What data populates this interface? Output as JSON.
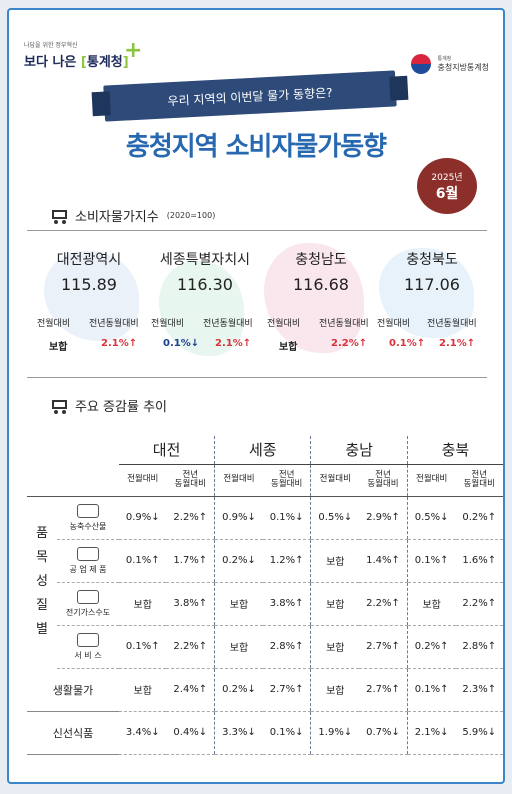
{
  "header": {
    "logo_tagline": "나답을 위한 정부혁신",
    "logo_text_left": "보다 나은",
    "logo_text_right": "통계청",
    "agency_small": "통계청",
    "agency_name": "충청지방통계청",
    "banner": "우리 지역의 이번달 물가 동향은?",
    "title": "충청지역 소비자물가동향",
    "date_year": "2025년",
    "date_month": "6월"
  },
  "index_section": {
    "heading": "소비자물가지수",
    "base_note": "(2020=100)",
    "col_labels": [
      "전월대비",
      "전년동월대비"
    ],
    "regions": [
      {
        "name": "대전광역시",
        "index": "115.89",
        "mom": "보합",
        "mom_dir": "flat",
        "yoy": "2.1%↑",
        "yoy_dir": "up"
      },
      {
        "name": "세종특별자치시",
        "index": "116.30",
        "mom": "0.1%↓",
        "mom_dir": "down",
        "yoy": "2.1%↑",
        "yoy_dir": "up"
      },
      {
        "name": "충청남도",
        "index": "116.68",
        "mom": "보합",
        "mom_dir": "flat",
        "yoy": "2.2%↑",
        "yoy_dir": "up"
      },
      {
        "name": "충청북도",
        "index": "117.06",
        "mom": "0.1%↑",
        "mom_dir": "up",
        "yoy": "2.1%↑",
        "yoy_dir": "up"
      }
    ]
  },
  "trend_section": {
    "heading": "주요 증감률 추이",
    "regions": [
      "대전",
      "세종",
      "충남",
      "충북"
    ],
    "sub_mom": "전월대비",
    "sub_yoy_1": "전년",
    "sub_yoy_2": "동월대비",
    "side_label": [
      "품",
      "목",
      "성",
      "질",
      "별"
    ],
    "rows": [
      {
        "label": "농축수산물",
        "icon": "piggy-bank-icon",
        "vals": [
          [
            "0.9%↓",
            "down"
          ],
          [
            "2.2%↑",
            "up"
          ],
          [
            "0.9%↓",
            "down"
          ],
          [
            "0.1%↓",
            "down"
          ],
          [
            "0.5%↓",
            "down"
          ],
          [
            "2.9%↑",
            "up"
          ],
          [
            "0.5%↓",
            "down"
          ],
          [
            "0.2%↑",
            "up"
          ]
        ]
      },
      {
        "label": "공 업 제 품",
        "icon": "factory-icon",
        "vals": [
          [
            "0.1%↑",
            "up"
          ],
          [
            "1.7%↑",
            "up"
          ],
          [
            "0.2%↓",
            "down"
          ],
          [
            "1.2%↑",
            "up"
          ],
          [
            "보합",
            "flat"
          ],
          [
            "1.4%↑",
            "up"
          ],
          [
            "0.1%↑",
            "up"
          ],
          [
            "1.6%↑",
            "up"
          ]
        ]
      },
      {
        "label": "전기가스수도",
        "icon": "utility-icon",
        "vals": [
          [
            "보합",
            "flat"
          ],
          [
            "3.8%↑",
            "up"
          ],
          [
            "보합",
            "flat"
          ],
          [
            "3.8%↑",
            "up"
          ],
          [
            "보합",
            "flat"
          ],
          [
            "2.2%↑",
            "up"
          ],
          [
            "보합",
            "flat"
          ],
          [
            "2.2%↑",
            "up"
          ]
        ]
      },
      {
        "label": "서 비 스",
        "icon": "phone-icon",
        "vals": [
          [
            "0.1%↑",
            "up"
          ],
          [
            "2.2%↑",
            "up"
          ],
          [
            "보합",
            "flat"
          ],
          [
            "2.8%↑",
            "up"
          ],
          [
            "보합",
            "flat"
          ],
          [
            "2.7%↑",
            "up"
          ],
          [
            "0.2%↑",
            "up"
          ],
          [
            "2.8%↑",
            "up"
          ]
        ]
      }
    ],
    "living": {
      "label": "생활물가",
      "vals": [
        [
          "보합",
          "flat"
        ],
        [
          "2.4%↑",
          "up"
        ],
        [
          "0.2%↓",
          "down"
        ],
        [
          "2.7%↑",
          "up"
        ],
        [
          "보합",
          "flat"
        ],
        [
          "2.7%↑",
          "up"
        ],
        [
          "0.1%↑",
          "up"
        ],
        [
          "2.3%↑",
          "up"
        ]
      ]
    },
    "fresh": {
      "label": "신선식품",
      "vals": [
        [
          "3.4%↓",
          "down"
        ],
        [
          "0.4%↓",
          "down"
        ],
        [
          "3.3%↓",
          "down"
        ],
        [
          "0.1%↓",
          "down"
        ],
        [
          "1.9%↓",
          "down"
        ],
        [
          "0.7%↓",
          "down"
        ],
        [
          "2.1%↓",
          "down"
        ],
        [
          "5.9%↓",
          "down"
        ]
      ]
    }
  },
  "colors": {
    "title_blue": "#2868b0",
    "banner_navy": "#2d4a78",
    "badge_red": "#8c2f2a",
    "up_red": "#d8323b",
    "down_navy": "#1d3f8f"
  }
}
